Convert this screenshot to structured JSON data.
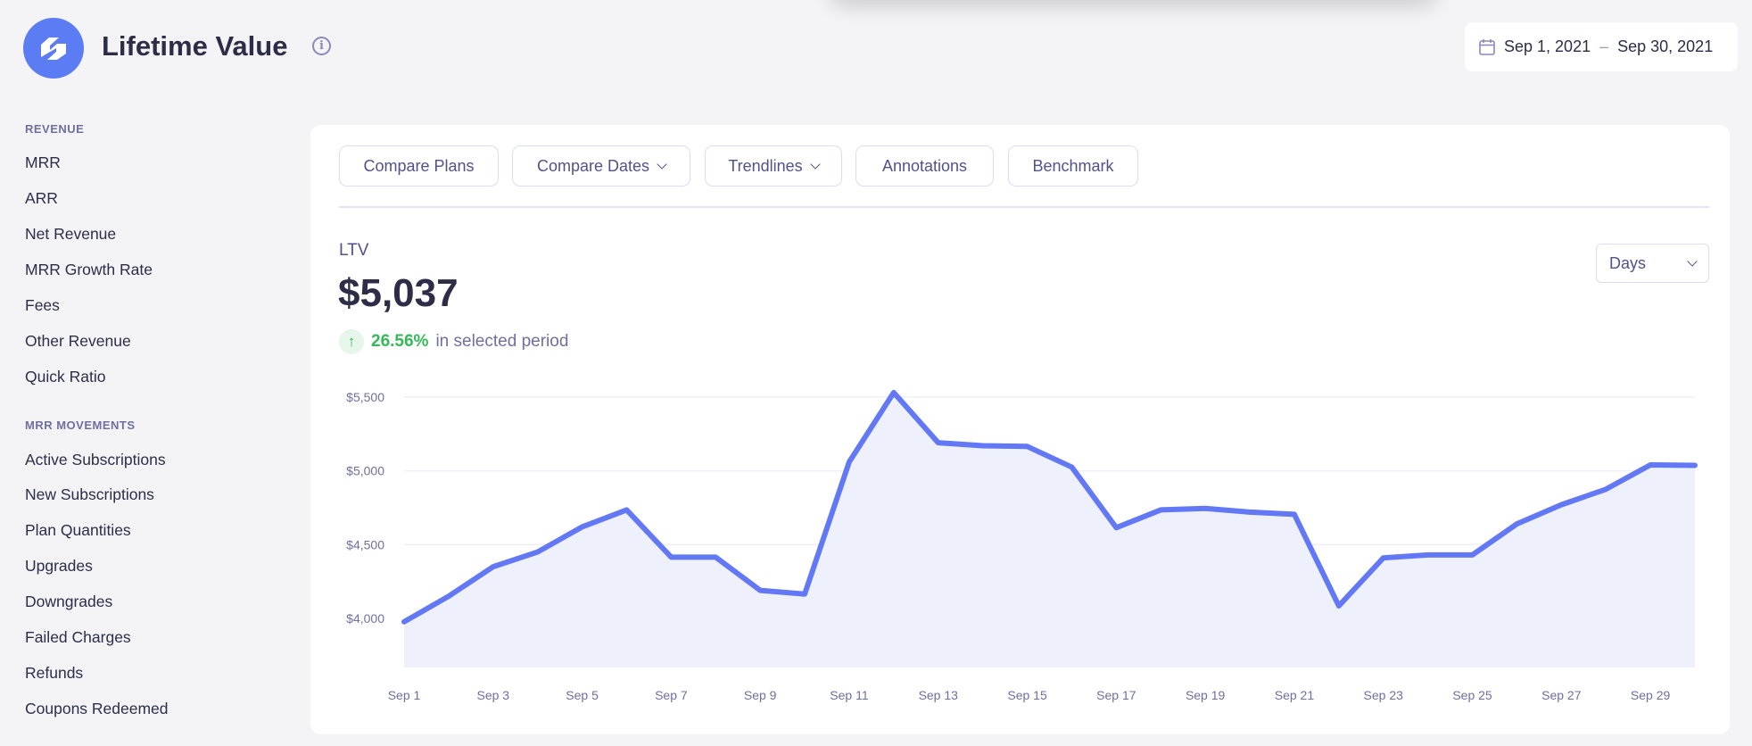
{
  "header": {
    "title": "Lifetime Value",
    "info_icon": "info-icon",
    "logo": "baremetrics-logo"
  },
  "date_range": {
    "start": "Sep 1, 2021",
    "separator": "–",
    "end": "Sep 30, 2021",
    "icon": "calendar-icon"
  },
  "sidebar": {
    "sections": [
      {
        "title": "REVENUE",
        "items": [
          "MRR",
          "ARR",
          "Net Revenue",
          "MRR Growth Rate",
          "Fees",
          "Other Revenue",
          "Quick Ratio"
        ]
      },
      {
        "title": "MRR MOVEMENTS",
        "items": [
          "Active Subscriptions",
          "New Subscriptions",
          "Plan Quantities",
          "Upgrades",
          "Downgrades",
          "Failed Charges",
          "Refunds",
          "Coupons Redeemed"
        ]
      }
    ]
  },
  "toolbar": {
    "buttons": [
      {
        "label": "Compare Plans",
        "dropdown": false
      },
      {
        "label": "Compare Dates",
        "dropdown": true
      },
      {
        "label": "Trendlines",
        "dropdown": true
      },
      {
        "label": "Annotations",
        "dropdown": false
      },
      {
        "label": "Benchmark",
        "dropdown": false
      }
    ]
  },
  "metric": {
    "label": "LTV",
    "value": "$5,037",
    "change": "26.56%",
    "change_suffix": "in selected period",
    "change_direction": "up",
    "change_color": "#34b85a"
  },
  "interval_select": {
    "selected": "Days"
  },
  "chart_data": {
    "type": "area",
    "x": [
      "Sep 1",
      "Sep 2",
      "Sep 3",
      "Sep 4",
      "Sep 5",
      "Sep 6",
      "Sep 7",
      "Sep 8",
      "Sep 9",
      "Sep 10",
      "Sep 11",
      "Sep 12",
      "Sep 13",
      "Sep 14",
      "Sep 15",
      "Sep 16",
      "Sep 17",
      "Sep 18",
      "Sep 19",
      "Sep 20",
      "Sep 21",
      "Sep 22",
      "Sep 23",
      "Sep 24",
      "Sep 25",
      "Sep 26",
      "Sep 27",
      "Sep 28",
      "Sep 29",
      "Sep 30"
    ],
    "values": [
      3977,
      4150,
      4350,
      4450,
      4620,
      4735,
      4415,
      4415,
      4190,
      4165,
      5060,
      5530,
      5190,
      5170,
      5165,
      5025,
      4615,
      4735,
      4745,
      4720,
      4705,
      4085,
      4410,
      4430,
      4430,
      4640,
      4770,
      4875,
      5040,
      5037
    ],
    "x_tick_labels": [
      "Sep 1",
      "Sep 3",
      "Sep 5",
      "Sep 7",
      "Sep 9",
      "Sep 11",
      "Sep 13",
      "Sep 15",
      "Sep 17",
      "Sep 19",
      "Sep 21",
      "Sep 23",
      "Sep 25",
      "Sep 27",
      "Sep 29"
    ],
    "y_ticks": [
      4000,
      4500,
      5000,
      5500
    ],
    "y_tick_labels": [
      "$4,000",
      "$4,500",
      "$5,000",
      "$5,500"
    ],
    "ylim": [
      3667,
      5500
    ],
    "grid": true,
    "line_color": "#6378f5",
    "fill_color": "#eef0fc"
  }
}
